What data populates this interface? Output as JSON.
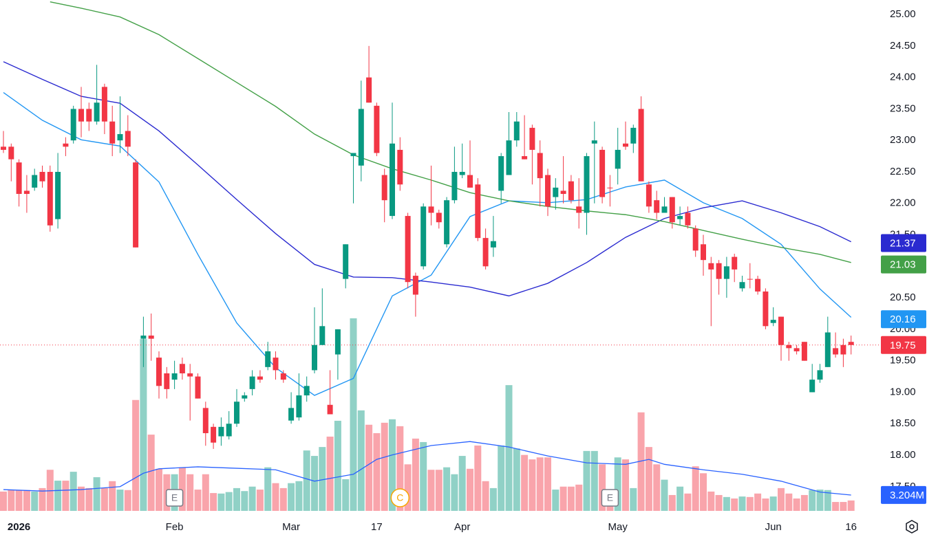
{
  "chart_data": {
    "type": "candlestick",
    "categories": [
      null,
      null,
      "2026",
      null,
      null,
      null,
      null,
      null,
      null,
      null,
      null,
      null,
      null,
      null,
      null,
      null,
      null,
      null,
      null,
      null,
      null,
      null,
      "Feb",
      null,
      null,
      null,
      null,
      null,
      null,
      null,
      null,
      null,
      null,
      null,
      null,
      null,
      null,
      "Mar",
      null,
      null,
      null,
      null,
      null,
      null,
      null,
      null,
      null,
      null,
      "17",
      null,
      null,
      null,
      null,
      null,
      null,
      null,
      null,
      null,
      null,
      "Apr",
      null,
      null,
      null,
      null,
      null,
      null,
      null,
      null,
      null,
      null,
      null,
      null,
      null,
      null,
      null,
      null,
      null,
      null,
      null,
      "May",
      null,
      null,
      null,
      null,
      null,
      null,
      null,
      null,
      null,
      null,
      null,
      null,
      null,
      null,
      null,
      null,
      null,
      null,
      null,
      "Jun",
      null,
      null,
      null,
      null,
      null,
      null,
      null,
      null,
      null,
      "16"
    ],
    "open": [
      22.9,
      22.9,
      22.65,
      22.2,
      22.25,
      22.5,
      22.5,
      21.75,
      22.95,
      23.0,
      23.5,
      23.5,
      23.3,
      23.85,
      23.3,
      23.0,
      23.15,
      22.65,
      19.85,
      19.9,
      19.55,
      19.3,
      19.2,
      19.45,
      19.3,
      19.25,
      18.75,
      18.45,
      18.3,
      18.3,
      18.5,
      18.9,
      19.05,
      19.25,
      19.4,
      19.55,
      19.3,
      18.55,
      18.6,
      18.95,
      19.35,
      19.75,
      18.8,
      19.6,
      20.8,
      22.75,
      22.6,
      24.0,
      23.55,
      22.45,
      21.8,
      22.85,
      21.8,
      20.85,
      21.0,
      21.95,
      21.85,
      21.35,
      22.05,
      22.45,
      22.45,
      22.3,
      21.45,
      21.3,
      22.2,
      22.45,
      23.0,
      22.75,
      23.2,
      22.8,
      22.45,
      22.1,
      22.2,
      22.35,
      21.95,
      21.85,
      22.95,
      22.85,
      22.25,
      22.55,
      22.95,
      22.95,
      23.5,
      22.3,
      22.05,
      21.85,
      22.1,
      21.75,
      21.85,
      21.6,
      21.35,
      21.05,
      21.05,
      20.8,
      21.15,
      20.65,
      20.8,
      20.8,
      20.6,
      20.1,
      20.2,
      19.75,
      19.7,
      19.8,
      19.0,
      19.2,
      19.4,
      19.7,
      19.75,
      19.8
    ],
    "high": [
      23.15,
      22.95,
      22.7,
      22.45,
      22.55,
      22.6,
      22.6,
      22.8,
      23.05,
      23.55,
      23.85,
      23.6,
      24.2,
      23.9,
      23.55,
      23.7,
      23.4,
      22.7,
      20.2,
      20.25,
      19.65,
      19.4,
      19.5,
      19.55,
      19.45,
      19.3,
      18.85,
      18.5,
      18.6,
      18.7,
      19.05,
      19.0,
      19.35,
      19.35,
      19.8,
      19.65,
      19.35,
      19.0,
      19.3,
      19.25,
      20.35,
      20.65,
      19.35,
      20.0,
      21.35,
      22.8,
      23.95,
      24.5,
      23.6,
      22.55,
      23.6,
      23.05,
      21.85,
      20.9,
      22.0,
      22.6,
      21.9,
      22.1,
      22.9,
      22.95,
      23.0,
      22.4,
      21.6,
      21.8,
      22.8,
      23.45,
      23.45,
      23.4,
      23.25,
      23.0,
      22.55,
      22.4,
      22.75,
      22.45,
      22.4,
      22.8,
      23.3,
      22.9,
      22.45,
      23.2,
      23.3,
      23.25,
      23.7,
      22.35,
      22.2,
      22.1,
      22.1,
      21.95,
      21.95,
      21.65,
      21.5,
      21.15,
      21.1,
      21.15,
      21.2,
      20.85,
      21.05,
      20.85,
      20.65,
      20.35,
      20.2,
      19.8,
      19.75,
      19.8,
      19.45,
      19.45,
      20.2,
      19.95,
      19.85,
      19.9
    ],
    "low": [
      22.8,
      22.35,
      21.95,
      21.85,
      22.2,
      22.25,
      21.55,
      21.6,
      22.75,
      22.95,
      23.05,
      23.15,
      23.25,
      23.1,
      22.75,
      22.8,
      22.75,
      21.3,
      19.4,
      19.5,
      18.9,
      18.9,
      19.05,
      19.2,
      18.55,
      18.9,
      18.15,
      18.1,
      18.15,
      18.25,
      18.45,
      18.85,
      18.95,
      19.15,
      19.35,
      19.2,
      19.15,
      18.5,
      18.55,
      18.85,
      19.3,
      19.75,
      18.65,
      19.2,
      20.65,
      22.0,
      22.35,
      23.6,
      22.75,
      21.7,
      21.75,
      22.2,
      20.65,
      20.2,
      20.95,
      21.65,
      21.6,
      21.3,
      22.0,
      22.4,
      22.25,
      21.4,
      20.95,
      21.15,
      22.0,
      22.45,
      22.9,
      22.7,
      22.3,
      21.95,
      21.8,
      21.9,
      22.0,
      22.0,
      21.6,
      21.5,
      22.0,
      22.0,
      21.95,
      22.3,
      22.85,
      22.8,
      22.35,
      21.85,
      21.75,
      21.85,
      21.6,
      21.65,
      21.6,
      21.15,
      20.85,
      20.05,
      20.55,
      20.5,
      20.75,
      20.6,
      20.65,
      20.55,
      20.0,
      20.05,
      19.5,
      19.5,
      19.6,
      19.5,
      19.0,
      19.15,
      19.4,
      19.55,
      19.4,
      19.6
    ],
    "close": [
      22.85,
      22.7,
      22.15,
      22.15,
      22.45,
      22.35,
      21.65,
      22.5,
      22.9,
      23.5,
      23.3,
      23.3,
      23.6,
      23.3,
      22.95,
      23.1,
      22.9,
      21.3,
      19.9,
      19.85,
      19.1,
      19.05,
      19.3,
      19.3,
      19.25,
      18.9,
      18.35,
      18.2,
      18.45,
      18.5,
      18.85,
      18.95,
      19.25,
      19.2,
      19.65,
      19.35,
      19.2,
      18.75,
      18.95,
      19.1,
      19.75,
      20.05,
      18.65,
      20.0,
      21.35,
      22.8,
      23.5,
      23.6,
      22.8,
      22.05,
      22.95,
      22.3,
      20.75,
      20.55,
      21.95,
      21.85,
      21.7,
      22.05,
      22.5,
      22.5,
      22.25,
      21.45,
      21.0,
      21.4,
      22.75,
      23.0,
      23.3,
      22.7,
      22.85,
      22.4,
      21.95,
      22.25,
      22.15,
      22.05,
      21.85,
      22.75,
      23.0,
      22.1,
      22.25,
      22.85,
      22.9,
      23.2,
      22.35,
      21.95,
      21.85,
      21.95,
      21.7,
      21.8,
      21.65,
      21.25,
      21.1,
      20.95,
      20.8,
      21.0,
      20.95,
      20.75,
      20.8,
      20.6,
      20.05,
      20.15,
      19.75,
      19.7,
      19.65,
      19.5,
      19.2,
      19.35,
      19.95,
      19.6,
      19.6,
      19.75
    ],
    "volume": [
      3.9,
      4.3,
      4.2,
      4.2,
      3.9,
      4.6,
      8.3,
      6.1,
      6.1,
      7.9,
      4.9,
      4.6,
      6.8,
      4.6,
      6.0,
      4.3,
      4.2,
      22.4,
      34.7,
      15.4,
      8.5,
      7.4,
      7.4,
      8.8,
      7.4,
      4.3,
      7.4,
      3.6,
      3.5,
      3.8,
      4.6,
      4.0,
      4.9,
      4.3,
      8.8,
      5.6,
      4.6,
      5.6,
      6.0,
      12.2,
      11.1,
      12.9,
      15.0,
      18.2,
      6.4,
      38.9,
      20.3,
      17.4,
      15.7,
      17.8,
      18.5,
      17.1,
      9.4,
      14.6,
      13.9,
      8.3,
      8.3,
      8.8,
      7.4,
      11.1,
      8.5,
      13.2,
      6.0,
      4.6,
      13.2,
      25.4,
      12.6,
      11.3,
      10.4,
      10.8,
      10.8,
      4.3,
      4.9,
      4.9,
      5.3,
      12.1,
      12.1,
      9.4,
      4.3,
      10.8,
      10.4,
      4.6,
      19.9,
      12.9,
      9.4,
      6.3,
      3.2,
      4.9,
      3.5,
      9.0,
      7.6,
      3.9,
      3.2,
      2.8,
      2.5,
      2.9,
      2.8,
      3.5,
      2.5,
      2.9,
      4.6,
      3.5,
      2.5,
      3.2,
      4.2,
      4.3,
      4.2,
      1.8,
      1.8,
      2.1
    ],
    "up_color": "#089981",
    "down_color": "#f23645",
    "ylim": [
      16.93,
      25.23
    ],
    "yticks": [
      {
        "value": 17.5,
        "label": "17.50"
      },
      {
        "value": 18,
        "label": "18.00"
      },
      {
        "value": 18.5,
        "label": "18.50"
      },
      {
        "value": 19,
        "label": "19.00"
      },
      {
        "value": 19.5,
        "label": "19.50"
      },
      {
        "value": 20,
        "label": "20.00"
      },
      {
        "value": 20.5,
        "label": "20.50"
      },
      {
        "value": 21,
        "label": "21.00"
      },
      {
        "value": 21.5,
        "label": "21.50"
      },
      {
        "value": 22,
        "label": "22.00"
      },
      {
        "value": 22.5,
        "label": "22.50"
      },
      {
        "value": 23,
        "label": "23.00"
      },
      {
        "value": 23.5,
        "label": "23.50"
      },
      {
        "value": 24,
        "label": "24.00"
      },
      {
        "value": 24.5,
        "label": "24.50"
      },
      {
        "value": 25,
        "label": "25.00"
      }
    ],
    "volume_ylim": [
      0,
      40
    ],
    "moving_averages": [
      {
        "color": "#2196f3",
        "label": {
          "value": 20.16,
          "label": "20.16"
        },
        "x": [
          0,
          5,
          10,
          15,
          20,
          25,
          30,
          35,
          40,
          45,
          50,
          55,
          60,
          65,
          70,
          75,
          80,
          85,
          90,
          95,
          100,
          105,
          109
        ],
        "values": [
          23.76,
          23.32,
          23.01,
          22.91,
          22.34,
          21.19,
          20.1,
          19.39,
          18.95,
          19.22,
          20.53,
          20.86,
          21.79,
          22.04,
          22.01,
          22.06,
          22.26,
          22.37,
          22.01,
          21.76,
          21.35,
          20.64,
          20.19
        ]
      },
      {
        "color": "#2a2ad0",
        "label": {
          "value": 21.37,
          "label": "21.37"
        },
        "x": [
          0,
          5,
          10,
          15,
          20,
          25,
          30,
          35,
          40,
          45,
          50,
          55,
          60,
          65,
          70,
          75,
          80,
          85,
          90,
          95,
          100,
          105,
          109
        ],
        "values": [
          24.25,
          23.97,
          23.7,
          23.59,
          23.15,
          22.61,
          22.06,
          21.52,
          21.03,
          20.83,
          20.82,
          20.75,
          20.67,
          20.53,
          20.73,
          21.06,
          21.46,
          21.76,
          21.93,
          22.04,
          21.85,
          21.63,
          21.39
        ]
      },
      {
        "color": "#43a047",
        "label": {
          "value": 21.03,
          "label": "21.03"
        },
        "x": [
          6,
          10,
          15,
          20,
          25,
          30,
          35,
          40,
          45,
          50,
          55,
          60,
          65,
          70,
          75,
          80,
          85,
          90,
          95,
          100,
          105,
          109
        ],
        "values": [
          25.2,
          25.1,
          24.96,
          24.68,
          24.3,
          23.92,
          23.54,
          23.1,
          22.77,
          22.55,
          22.37,
          22.17,
          22.04,
          21.95,
          21.88,
          21.82,
          21.71,
          21.57,
          21.43,
          21.3,
          21.19,
          21.06
        ]
      }
    ],
    "volume_ma": {
      "color": "#2962ff",
      "label": {
        "value": 3.204,
        "label": "3.204M"
      },
      "x": [
        0,
        5,
        10,
        15,
        18,
        20,
        25,
        30,
        35,
        40,
        45,
        48,
        50,
        55,
        60,
        65,
        70,
        75,
        80,
        83,
        85,
        90,
        95,
        100,
        105,
        109
      ],
      "values": [
        4.3,
        4.0,
        4.3,
        4.9,
        7.6,
        8.5,
        8.9,
        8.6,
        8.3,
        6.0,
        7.4,
        10.4,
        11.3,
        13.2,
        14.0,
        12.9,
        11.1,
        9.7,
        9.4,
        10.4,
        9.4,
        8.3,
        7.4,
        6.0,
        3.8,
        3.2
      ]
    },
    "last_price": {
      "value": 19.75,
      "label": "19.75",
      "color": "#f23645"
    },
    "events": [
      {
        "label": "E",
        "x": 22,
        "color": "#787b86"
      },
      {
        "label": "C",
        "x": 51,
        "color": "#f7a600"
      },
      {
        "label": "E",
        "x": 78,
        "color": "#787b86"
      }
    ]
  }
}
